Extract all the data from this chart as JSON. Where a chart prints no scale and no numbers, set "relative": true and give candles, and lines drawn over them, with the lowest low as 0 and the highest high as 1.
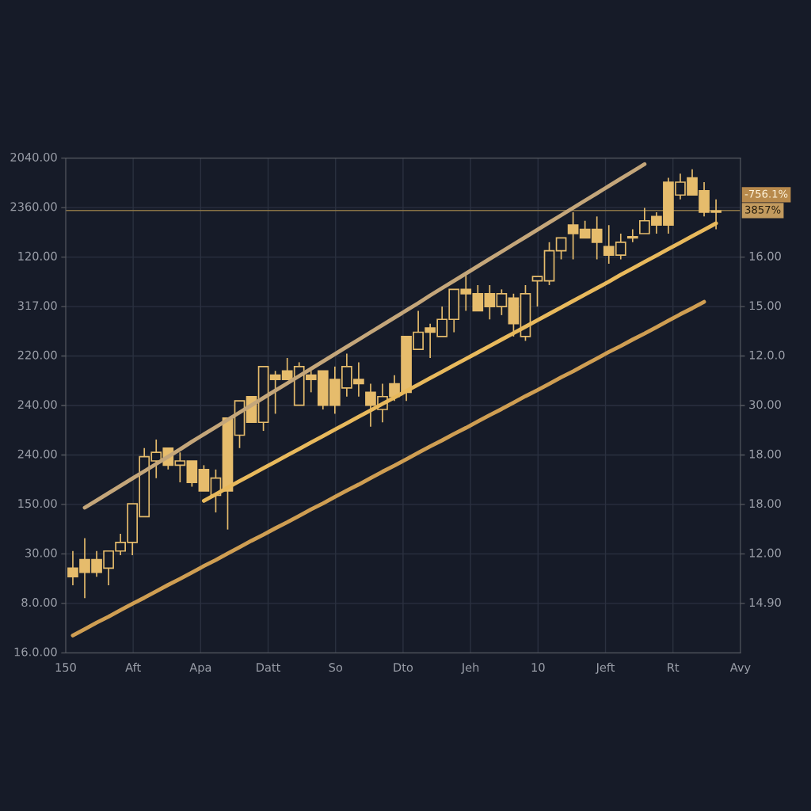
{
  "chart_data": {
    "type": "candlestick",
    "relative": true,
    "categories": [
      null,
      null,
      null,
      null,
      null,
      null,
      null,
      null,
      null,
      null,
      null,
      null,
      null,
      null,
      null,
      null,
      null,
      null,
      null,
      null,
      null,
      null,
      null,
      null,
      null,
      null,
      null,
      null,
      null,
      null,
      null,
      null,
      null,
      null,
      null,
      null,
      null,
      null,
      null,
      null,
      null,
      null,
      null,
      null,
      null,
      null,
      null,
      null,
      null,
      null,
      null,
      null,
      null,
      null,
      null
    ],
    "grid": true,
    "ref_lines": [
      {
        "axis": "y",
        "value": 0.904,
        "color": "#8a7446"
      }
    ],
    "annotations": [
      "2040.00",
      "2360.00",
      "120.00",
      "317.00",
      "220.00",
      "240.00",
      "240.00",
      "150.00",
      "30.00",
      "8.0.00",
      "16.0.00",
      "16.00",
      "15.00",
      "12.0.0",
      "30.00",
      "18.00",
      "18.00",
      "12.00",
      "14.90",
      "150",
      "Aft",
      "Apa",
      "Datt",
      "So",
      "Dto",
      "Jeh",
      "10",
      "Jeft",
      "Rt",
      "Avy",
      "-756.1%",
      "3857%"
    ],
    "series": [
      {
        "color": "#e6bc6c",
        "ohlc": [
          [
            0.07,
            0.11,
            0.03,
            0.05
          ],
          [
            0.09,
            0.14,
            0,
            0.06
          ],
          [
            0.09,
            0.11,
            0.05,
            0.06
          ],
          [
            0.07,
            0.11,
            0.03,
            0.11
          ],
          [
            0.11,
            0.15,
            0.1,
            0.13
          ],
          [
            0.13,
            0.22,
            0.1,
            0.22
          ],
          [
            0.19,
            0.35,
            0.19,
            0.33
          ],
          [
            0.32,
            0.37,
            0.28,
            0.34
          ],
          [
            0.35,
            0.35,
            0.3,
            0.31
          ],
          [
            0.31,
            0.34,
            0.27,
            0.32
          ],
          [
            0.32,
            0.32,
            0.26,
            0.27
          ],
          [
            0.3,
            0.31,
            0.25,
            0.25
          ],
          [
            0.24,
            0.3,
            0.2,
            0.28
          ],
          [
            0.42,
            0.42,
            0.16,
            0.25
          ],
          [
            0.38,
            0.46,
            0.35,
            0.46
          ],
          [
            0.47,
            0.47,
            0.41,
            0.41
          ],
          [
            0.41,
            0.54,
            0.39,
            0.54
          ],
          [
            0.52,
            0.53,
            0.43,
            0.51
          ],
          [
            0.53,
            0.56,
            0.51,
            0.51
          ],
          [
            0.45,
            0.55,
            0.45,
            0.54
          ],
          [
            0.52,
            0.53,
            0.48,
            0.51
          ],
          [
            0.53,
            0.53,
            0.44,
            0.45
          ],
          [
            0.51,
            0.54,
            0.43,
            0.45
          ],
          [
            0.49,
            0.57,
            0.47,
            0.54
          ],
          [
            0.51,
            0.55,
            0.47,
            0.5
          ],
          [
            0.48,
            0.5,
            0.4,
            0.45
          ],
          [
            0.44,
            0.5,
            0.41,
            0.47
          ],
          [
            0.5,
            0.52,
            0.46,
            0.47
          ],
          [
            0.61,
            0.61,
            0.46,
            0.48
          ],
          [
            0.58,
            0.67,
            0.58,
            0.62
          ],
          [
            0.63,
            0.64,
            0.56,
            0.62
          ],
          [
            0.61,
            0.68,
            0.61,
            0.65
          ],
          [
            0.65,
            0.72,
            0.62,
            0.72
          ],
          [
            0.72,
            0.76,
            0.67,
            0.71
          ],
          [
            0.71,
            0.73,
            0.67,
            0.67
          ],
          [
            0.71,
            0.73,
            0.65,
            0.68
          ],
          [
            0.68,
            0.72,
            0.66,
            0.71
          ],
          [
            0.7,
            0.71,
            0.61,
            0.64
          ],
          [
            0.61,
            0.73,
            0.6,
            0.71
          ],
          [
            0.74,
            0.75,
            0.68,
            0.75
          ],
          [
            0.74,
            0.83,
            0.73,
            0.81
          ],
          [
            0.81,
            0.84,
            0.79,
            0.84
          ],
          [
            0.87,
            0.9,
            0.79,
            0.85
          ],
          [
            0.86,
            0.88,
            0.84,
            0.84
          ],
          [
            0.86,
            0.89,
            0.79,
            0.83
          ],
          [
            0.82,
            0.87,
            0.78,
            0.8
          ],
          [
            0.8,
            0.85,
            0.79,
            0.83
          ],
          [
            0.84,
            0.86,
            0.83,
            0.84
          ],
          [
            0.85,
            0.91,
            0.85,
            0.88
          ],
          [
            0.89,
            0.9,
            0.85,
            0.87
          ],
          [
            0.97,
            0.98,
            0.85,
            0.87
          ],
          [
            0.94,
            0.99,
            0.93,
            0.97
          ],
          [
            0.98,
            1,
            0.94,
            0.94
          ],
          [
            0.95,
            0.97,
            0.89,
            0.9
          ],
          [
            0.9,
            0.93,
            0.86,
            0.9
          ]
        ]
      },
      {
        "type": "line",
        "color": "#c4a67a",
        "values": [
          null,
          0.211,
          0.228,
          0.245,
          0.262,
          0.279,
          0.296,
          0.313,
          0.33,
          0.347,
          0.365,
          0.382,
          0.399,
          0.416,
          0.433,
          0.45,
          0.467,
          0.484,
          0.501,
          0.518,
          0.535,
          0.552,
          0.569,
          0.586,
          0.603,
          0.62,
          0.637,
          0.654,
          0.671,
          0.688,
          0.706,
          0.723,
          0.74,
          0.757,
          0.774,
          0.791,
          0.808,
          0.825,
          0.842,
          0.859,
          0.876,
          0.893,
          0.91,
          0.927,
          0.944,
          0.961,
          0.978,
          0.995,
          1.012,
          null,
          null,
          null,
          null,
          null,
          null
        ]
      },
      {
        "type": "line",
        "color": "#e8b95c",
        "values": [
          null,
          null,
          null,
          null,
          null,
          null,
          null,
          null,
          null,
          null,
          null,
          0.227,
          0.242,
          0.258,
          0.273,
          0.288,
          0.303,
          0.318,
          0.333,
          0.348,
          0.363,
          0.378,
          0.393,
          0.408,
          0.423,
          0.438,
          0.453,
          0.468,
          0.483,
          0.498,
          0.513,
          0.528,
          0.543,
          0.558,
          0.573,
          0.588,
          0.603,
          0.618,
          0.633,
          0.648,
          0.663,
          0.678,
          0.693,
          0.708,
          0.723,
          0.738,
          0.754,
          0.769,
          0.784,
          0.799,
          0.814,
          0.829,
          0.844,
          0.859,
          0.874
        ]
      },
      {
        "type": "line",
        "color": "#cf9e52",
        "values": [
          -0.087,
          -0.072,
          -0.057,
          -0.043,
          -0.028,
          -0.013,
          0.001,
          0.016,
          0.031,
          0.045,
          0.06,
          0.075,
          0.089,
          0.104,
          0.119,
          0.134,
          0.148,
          0.163,
          0.177,
          0.192,
          0.207,
          0.221,
          0.236,
          0.251,
          0.265,
          0.28,
          0.295,
          0.309,
          0.324,
          0.339,
          0.354,
          0.368,
          0.383,
          0.397,
          0.412,
          0.427,
          0.441,
          0.456,
          0.471,
          0.485,
          0.5,
          0.515,
          0.529,
          0.544,
          0.559,
          0.574,
          0.588,
          0.603,
          0.617,
          0.632,
          0.647,
          0.662,
          0.676,
          0.691,
          null
        ]
      }
    ]
  }
}
